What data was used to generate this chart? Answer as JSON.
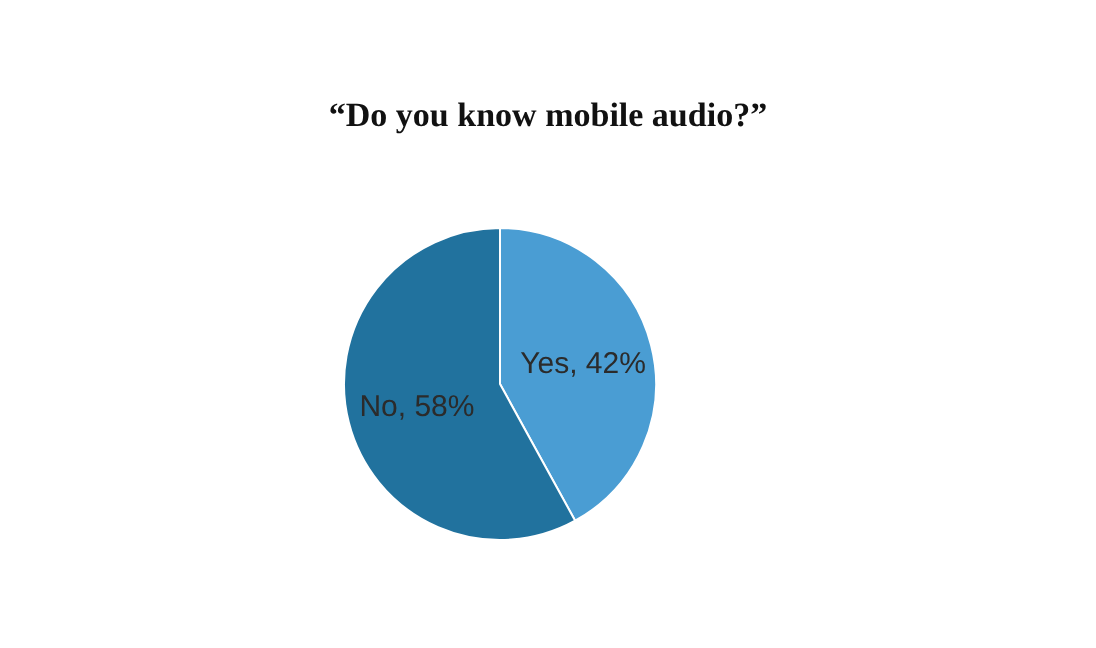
{
  "chart_data": {
    "type": "pie",
    "title": "“Do you know mobile audio?”",
    "categories": [
      "Yes",
      "No"
    ],
    "values": [
      42,
      58
    ],
    "colors": [
      "#4a9dd3",
      "#21729e"
    ],
    "value_labels": [
      "42%",
      "58%"
    ],
    "legend": false
  }
}
